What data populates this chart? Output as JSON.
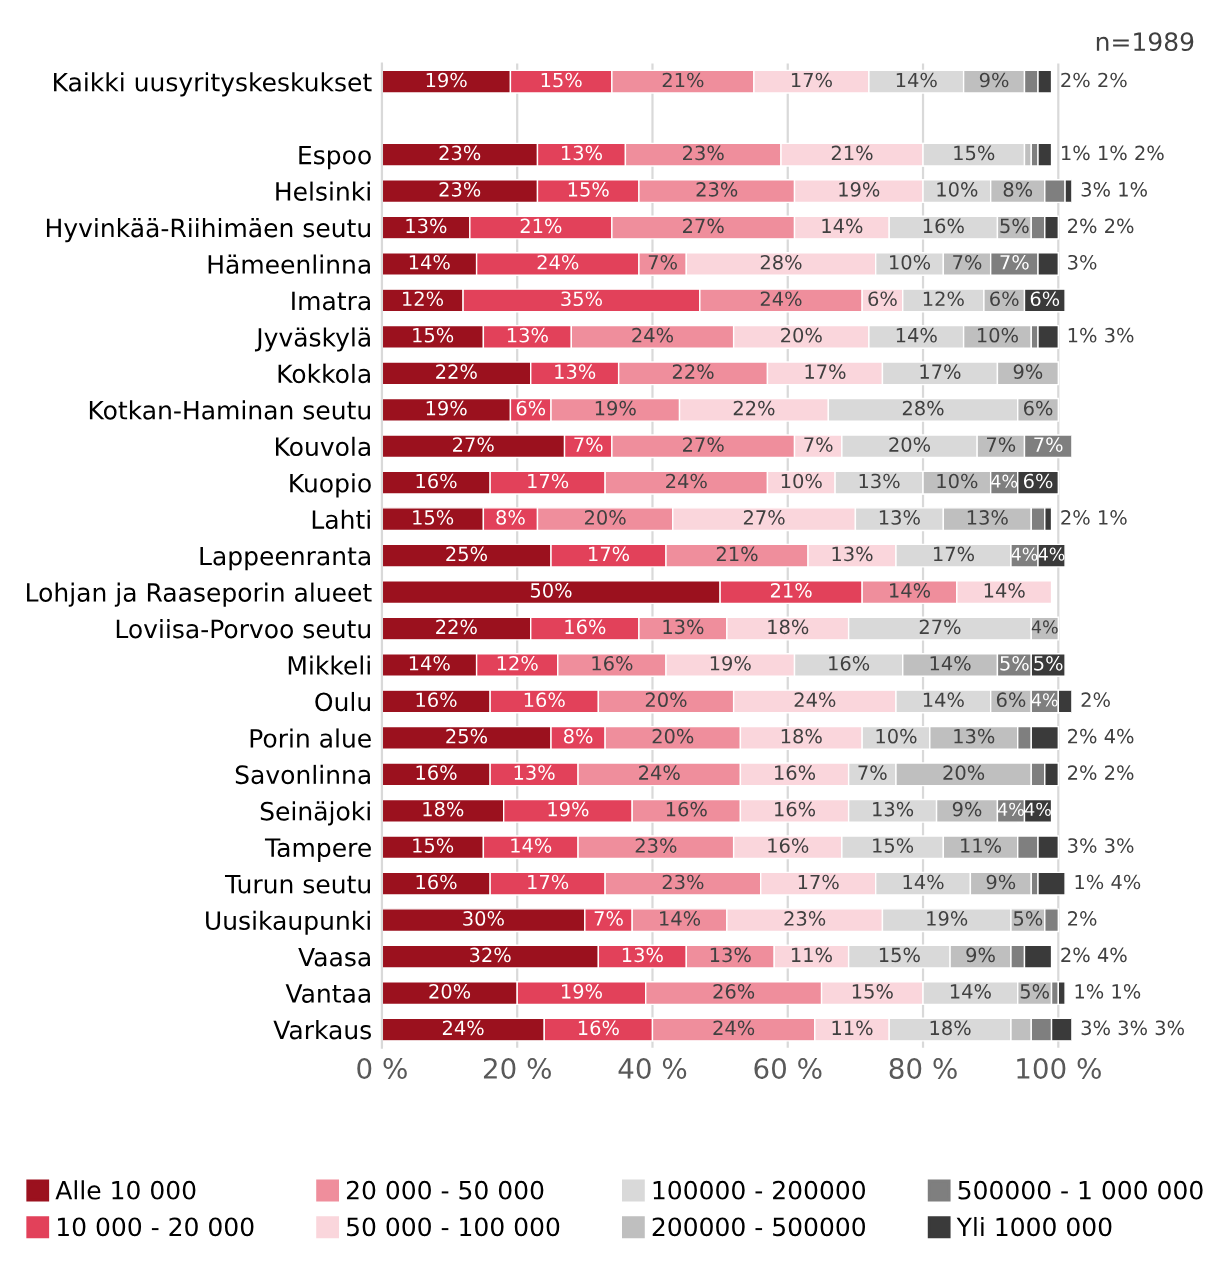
{
  "chart_data": {
    "type": "bar",
    "orientation": "horizontal",
    "stacked": true,
    "categories": [
      "Kaikki uusyrityskeskukset",
      null,
      "Espoo",
      "Helsinki",
      "Hyvinkää-Riihimäen seutu",
      "Hämeenlinna",
      "Imatra",
      "Jyväskylä",
      "Kokkola",
      "Kotkan-Haminan seutu",
      "Kouvola",
      "Kuopio",
      "Lahti",
      "Lappeenranta",
      "Lohjan ja Raaseporin alueet",
      "Loviisa-Porvoo seutu",
      "Mikkeli",
      "Oulu",
      "Porin alue",
      "Savonlinna",
      "Seinäjoki",
      "Tampere",
      "Turun seutu",
      "Uusikaupunki",
      "Vaasa",
      "Vantaa",
      "Varkaus"
    ],
    "series": [
      {
        "name": "Alle 10 000",
        "color": "#9b111e",
        "values": [
          19,
          null,
          23,
          23,
          13,
          14,
          12,
          15,
          22,
          19,
          27,
          16,
          15,
          25,
          50,
          22,
          14,
          16,
          25,
          16,
          18,
          15,
          16,
          30,
          32,
          20,
          24
        ],
        "value_labels": [
          "19%",
          null,
          "23%",
          "23%",
          "13%",
          "14%",
          "12%",
          "15%",
          "22%",
          "19%",
          "27%",
          "16%",
          "15%",
          "25%",
          "50%",
          "22%",
          "14%",
          "16%",
          "25%",
          "16%",
          "18%",
          "15%",
          "16%",
          "30%",
          "32%",
          "20%",
          "24%"
        ]
      },
      {
        "name": "10 000 - 20 000",
        "color": "#e2415a",
        "values": [
          15,
          null,
          13,
          15,
          21,
          24,
          35,
          13,
          13,
          6,
          7,
          17,
          8,
          17,
          21,
          16,
          12,
          16,
          8,
          13,
          19,
          14,
          17,
          7,
          13,
          19,
          16
        ],
        "value_labels": [
          "15%",
          null,
          "13%",
          "15%",
          "21%",
          "24%",
          "35%",
          "13%",
          "13%",
          "6%",
          "7%",
          "17%",
          "8%",
          "17%",
          "21%",
          "16%",
          "12%",
          "16%",
          "8%",
          "13%",
          "19%",
          "14%",
          "17%",
          "7%",
          "13%",
          "19%",
          "16%"
        ]
      },
      {
        "name": "20 000 - 50 000",
        "color": "#ef8e9c",
        "values": [
          21,
          null,
          23,
          23,
          27,
          7,
          24,
          24,
          22,
          19,
          27,
          24,
          20,
          21,
          14,
          13,
          16,
          20,
          20,
          24,
          16,
          23,
          23,
          14,
          13,
          26,
          24
        ],
        "value_labels": [
          "21%",
          null,
          "23%",
          "23%",
          "27%",
          "7%",
          "24%",
          "24%",
          "22%",
          "19%",
          "27%",
          "24%",
          "20%",
          "21%",
          "14%",
          "13%",
          "16%",
          "20%",
          "20%",
          "24%",
          "16%",
          "23%",
          "23%",
          "14%",
          "13%",
          "26%",
          "24%"
        ]
      },
      {
        "name": "50 000 - 100 000",
        "color": "#fad6dc",
        "values": [
          17,
          null,
          21,
          19,
          14,
          28,
          6,
          20,
          17,
          22,
          7,
          10,
          27,
          13,
          14,
          18,
          19,
          24,
          18,
          16,
          16,
          16,
          17,
          23,
          11,
          15,
          11
        ],
        "value_labels": [
          "17%",
          null,
          "21%",
          "19%",
          "14%",
          "28%",
          "6%",
          "20%",
          "17%",
          "22%",
          "7%",
          "10%",
          "27%",
          "13%",
          "14%",
          "18%",
          "19%",
          "24%",
          "18%",
          "16%",
          "16%",
          "16%",
          "17%",
          "23%",
          "11%",
          "15%",
          "11%"
        ]
      },
      {
        "name": "100000 - 200000",
        "color": "#d9d9d9",
        "values": [
          14,
          null,
          15,
          10,
          16,
          10,
          12,
          14,
          17,
          28,
          20,
          13,
          13,
          17,
          null,
          27,
          16,
          14,
          10,
          7,
          13,
          15,
          14,
          19,
          15,
          14,
          18
        ],
        "value_labels": [
          "14%",
          null,
          "15%",
          "10%",
          "16%",
          "10%",
          "12%",
          "14%",
          "17%",
          "28%",
          "20%",
          "13%",
          "13%",
          "17%",
          null,
          "27%",
          "16%",
          "14%",
          "10%",
          "7%",
          "13%",
          "15%",
          "14%",
          "19%",
          "15%",
          "14%",
          "18%"
        ]
      },
      {
        "name": "200000 - 500000",
        "color": "#bfbfbf",
        "values": [
          9,
          null,
          1,
          8,
          5,
          7,
          6,
          10,
          9,
          6,
          7,
          10,
          13,
          null,
          null,
          4,
          14,
          6,
          13,
          20,
          9,
          11,
          9,
          5,
          9,
          5,
          3
        ],
        "value_labels": [
          "9%",
          null,
          "1%",
          "8%",
          "5%",
          "7%",
          "6%",
          "10%",
          "9%",
          "6%",
          "7%",
          "10%",
          "13%",
          null,
          null,
          "4%",
          "14%",
          "6%",
          "13%",
          "20%",
          "9%",
          "11%",
          "9%",
          "5%",
          "9%",
          "5%",
          "3%"
        ]
      },
      {
        "name": "500000 - 1 000 000",
        "color": "#7f7f7f",
        "values": [
          2,
          null,
          1,
          3,
          2,
          7,
          null,
          1,
          null,
          null,
          7,
          4,
          2,
          4,
          null,
          null,
          5,
          4,
          2,
          2,
          4,
          3,
          1,
          2,
          2,
          1,
          3
        ],
        "value_labels": [
          "2%",
          null,
          "1%",
          "3%",
          "2%",
          "7%",
          null,
          "1%",
          null,
          null,
          "7%",
          "4%",
          "2%",
          "4%",
          null,
          null,
          "5%",
          "4%",
          "2%",
          "2%",
          "4%",
          "3%",
          "1%",
          "2%",
          "2%",
          "1%",
          "3%"
        ]
      },
      {
        "name": "Yli 1000 000",
        "color": "#3a3a3a",
        "values": [
          2,
          null,
          2,
          1,
          2,
          3,
          6,
          3,
          null,
          null,
          null,
          6,
          1,
          4,
          null,
          null,
          5,
          2,
          4,
          2,
          4,
          3,
          4,
          null,
          4,
          1,
          3
        ],
        "value_labels": [
          "2%",
          null,
          "2%",
          "1%",
          "2%",
          "3%",
          "6%",
          "3%",
          null,
          null,
          null,
          "6%",
          "1%",
          "4%",
          null,
          null,
          "5%",
          "2%",
          "4%",
          "2%",
          "4%",
          "3%",
          "4%",
          null,
          "4%",
          "1%",
          "3%"
        ]
      }
    ],
    "xlim": [
      0,
      102
    ],
    "xticks": [
      {
        "value": 0,
        "label": "0 %"
      },
      {
        "value": 20,
        "label": "20 %"
      },
      {
        "value": 40,
        "label": "40 %"
      },
      {
        "value": 60,
        "label": "60 %"
      },
      {
        "value": 80,
        "label": "80 %"
      },
      {
        "value": 100,
        "label": "100 %"
      }
    ],
    "grid": "x",
    "legend": "bottom",
    "annotations": [
      "n=1989"
    ]
  }
}
